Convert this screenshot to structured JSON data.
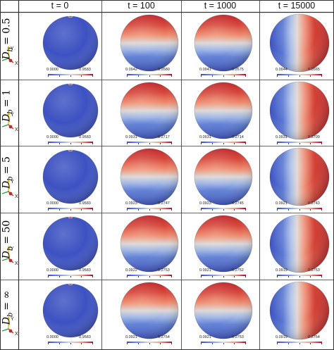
{
  "columns": [
    "t = 0",
    "t = 100",
    "t = 1000",
    "t = 15000"
  ],
  "rows": [
    {
      "label": {
        "symbol": "D",
        "sub": "b",
        "value": "= 0.5"
      },
      "cells": [
        {
          "min": "0.0000",
          "max": "0.9583",
          "pattern": "cap"
        },
        {
          "min": "0.0942",
          "max": "0.2680",
          "pattern": "top"
        },
        {
          "min": "0.0941",
          "max": "0.2675",
          "pattern": "top"
        },
        {
          "min": "0.0944",
          "max": "0.2665",
          "pattern": "side"
        }
      ]
    },
    {
      "label": {
        "symbol": "D",
        "sub": "b",
        "value": "= 1"
      },
      "cells": [
        {
          "min": "0.0000",
          "max": "0.9583",
          "pattern": "cap"
        },
        {
          "min": "0.0931",
          "max": "0.2717",
          "pattern": "top"
        },
        {
          "min": "0.0931",
          "max": "0.2714",
          "pattern": "top"
        },
        {
          "min": "0.0931",
          "max": "0.2709",
          "pattern": "side"
        }
      ]
    },
    {
      "label": {
        "symbol": "D",
        "sub": "b",
        "value": "= 5"
      },
      "cells": [
        {
          "min": "0.0000",
          "max": "0.9583",
          "pattern": "cap"
        },
        {
          "min": "0.0923",
          "max": "0.2747",
          "pattern": "top"
        },
        {
          "min": "0.0923",
          "max": "0.2745",
          "pattern": "top"
        },
        {
          "min": "0.0921",
          "max": "0.2743",
          "pattern": "side"
        }
      ]
    },
    {
      "label": {
        "symbol": "D",
        "sub": "b",
        "value": "= 50"
      },
      "cells": [
        {
          "min": "0.0000",
          "max": "0.9583",
          "pattern": "cap"
        },
        {
          "min": "0.0922",
          "max": "0.2753",
          "pattern": "top"
        },
        {
          "min": "0.0921",
          "max": "0.2752",
          "pattern": "top"
        },
        {
          "min": "0.0919",
          "max": "0.2753",
          "pattern": "side"
        }
      ]
    },
    {
      "label": {
        "symbol": "D",
        "sub": "b",
        "value": "= ∞"
      },
      "cells": [
        {
          "min": "0.0000",
          "max": "0.9583",
          "pattern": "cap"
        },
        {
          "min": "0.0921",
          "max": "0.2754",
          "pattern": "top"
        },
        {
          "min": "0.0921",
          "max": "0.2753",
          "pattern": "top"
        },
        {
          "min": "0.0919",
          "max": "0.2754",
          "pattern": "side"
        }
      ]
    }
  ],
  "axes": {
    "x": "X",
    "y": "Y",
    "z": "Z"
  },
  "colors": {
    "low": "#3b4cc0",
    "mid": "#dddcdc",
    "high": "#b40426",
    "grid": "#333333"
  }
}
